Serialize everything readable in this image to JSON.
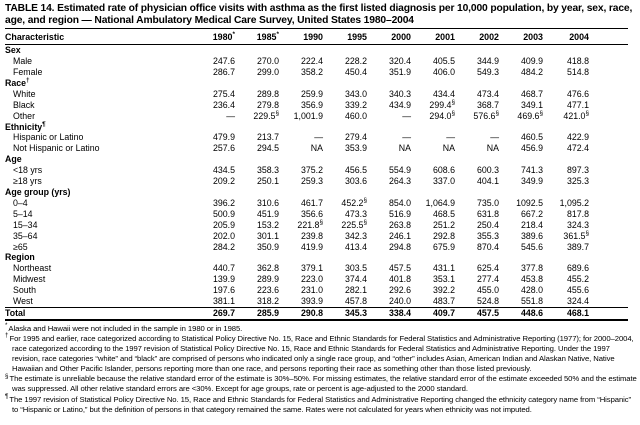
{
  "page": {
    "title": "TABLE 14. Estimated rate of physician office visits with asthma as the first listed diagnosis per 10,000 population, by year, sex, race, age, and region — National Ambulatory Medical Care Survey, United States 1980–2004"
  },
  "table": {
    "columns": [
      "Characteristic",
      "1980*",
      "1985*",
      "1990",
      "1995",
      "2000",
      "2001",
      "2002",
      "2003",
      "2004"
    ],
    "rows": [
      {
        "type": "section",
        "label": "Sex",
        "values": []
      },
      {
        "type": "data",
        "label": "Male",
        "values": [
          "247.6",
          "270.0",
          "222.4",
          "228.2",
          "320.4",
          "405.5",
          "344.9",
          "409.9",
          "418.8"
        ]
      },
      {
        "type": "data",
        "label": "Female",
        "values": [
          "286.7",
          "299.0",
          "358.2",
          "450.4",
          "351.9",
          "406.0",
          "549.3",
          "484.2",
          "514.8"
        ]
      },
      {
        "type": "section",
        "label": "Race†",
        "values": []
      },
      {
        "type": "data",
        "label": "White",
        "values": [
          "275.4",
          "289.8",
          "259.9",
          "343.0",
          "340.3",
          "434.4",
          "473.4",
          "468.7",
          "476.6"
        ]
      },
      {
        "type": "data",
        "label": "Black",
        "values": [
          "236.4",
          "279.8",
          "356.9",
          "339.2",
          "434.9",
          "299.4§",
          "368.7",
          "349.1",
          "477.1"
        ]
      },
      {
        "type": "data",
        "label": "Other",
        "values": [
          "—",
          "229.5§",
          "1,001.9",
          "460.0",
          "—",
          "294.0§",
          "576.6§",
          "469.6§",
          "421.0§"
        ]
      },
      {
        "type": "section",
        "label": "Ethnicity¶",
        "values": []
      },
      {
        "type": "data",
        "label": "Hispanic or Latino",
        "values": [
          "479.9",
          "213.7",
          "—",
          "279.4",
          "—",
          "—",
          "—",
          "460.5",
          "422.9"
        ]
      },
      {
        "type": "data",
        "label": "Not Hispanic or Latino",
        "values": [
          "257.6",
          "294.5",
          "NA",
          "353.9",
          "NA",
          "NA",
          "NA",
          "456.9",
          "472.4"
        ]
      },
      {
        "type": "section",
        "label": "Age",
        "values": []
      },
      {
        "type": "data",
        "label": "<18 yrs",
        "values": [
          "434.5",
          "358.3",
          "375.2",
          "456.5",
          "554.9",
          "608.6",
          "600.3",
          "741.3",
          "897.3"
        ]
      },
      {
        "type": "data",
        "label": "≥18 yrs",
        "values": [
          "209.2",
          "250.1",
          "259.3",
          "303.6",
          "264.3",
          "337.0",
          "404.1",
          "349.9",
          "325.3"
        ]
      },
      {
        "type": "section",
        "label": "Age group (yrs)",
        "values": []
      },
      {
        "type": "data",
        "label": "0–4",
        "values": [
          "396.2",
          "310.6",
          "461.7",
          "452.2§",
          "854.0",
          "1,064.9",
          "735.0",
          "1092.5",
          "1,095.2"
        ]
      },
      {
        "type": "data",
        "label": "5–14",
        "values": [
          "500.9",
          "451.9",
          "356.6",
          "473.3",
          "516.9",
          "468.5",
          "631.8",
          "667.2",
          "817.8"
        ]
      },
      {
        "type": "data",
        "label": "15–34",
        "values": [
          "205.9",
          "153.2",
          "221.8§",
          "225.5§",
          "263.8",
          "251.2",
          "250.4",
          "218.4",
          "324.3"
        ]
      },
      {
        "type": "data",
        "label": "35–64",
        "values": [
          "202.0",
          "301.1",
          "239.8",
          "342.3",
          "246.1",
          "292.8",
          "355.3",
          "389.6",
          "361.5§"
        ]
      },
      {
        "type": "data",
        "label": "≥65",
        "values": [
          "284.2",
          "350.9",
          "419.9",
          "413.4",
          "294.8",
          "675.9",
          "870.4",
          "545.6",
          "389.7"
        ]
      },
      {
        "type": "section",
        "label": "Region",
        "values": []
      },
      {
        "type": "data",
        "label": "Northeast",
        "values": [
          "440.7",
          "362.8",
          "379.1",
          "303.5",
          "457.5",
          "431.1",
          "625.4",
          "377.8",
          "689.6"
        ]
      },
      {
        "type": "data",
        "label": "Midwest",
        "values": [
          "139.9",
          "289.9",
          "223.0",
          "374.4",
          "401.8",
          "353.1",
          "277.4",
          "453.8",
          "455.2"
        ]
      },
      {
        "type": "data",
        "label": "South",
        "values": [
          "197.6",
          "223.6",
          "231.0",
          "282.1",
          "292.6",
          "392.2",
          "455.0",
          "428.0",
          "455.6"
        ]
      },
      {
        "type": "data",
        "label": "West",
        "values": [
          "381.1",
          "318.2",
          "393.9",
          "457.8",
          "240.0",
          "483.7",
          "524.8",
          "551.8",
          "324.4"
        ]
      },
      {
        "type": "total",
        "label": "Total",
        "values": [
          "269.7",
          "285.9",
          "290.8",
          "345.3",
          "338.4",
          "409.7",
          "457.5",
          "448.6",
          "468.1"
        ]
      }
    ]
  },
  "footnotes": [
    {
      "marker": "*",
      "text": "Alaska and Hawaii were not included in the sample in 1980 or in 1985."
    },
    {
      "marker": "†",
      "text": "For 1995 and earlier, race categorized according to Statistical Policy Directive No. 15, Race and Ethnic Standards for Federal Statistics and Administrative Reporting (1977); for 2000–2004, race categorized according to the 1997 revision of Statistical Policy Directive No. 15, Race and Ethnic Standards for Federal Statistics and Administrative Reporting. Under the 1997 revision, race categories “white” and “black” are comprised of persons who indicated only a single race group, and “other” includes Asian, American Indian and Alaskan Native, Native Hawaiian and Other Pacific Islander, persons reporting more than one race, and persons reporting their race as something other than those listed previously."
    },
    {
      "marker": "§",
      "text": "The estimate is unreliable because the relative standard error of the estimate is 30%–50%. For missing estimates, the relative standard error of the estimate exceeded 50% and the estimate was suppressed. All other relative standard errors are <30%. Except for age groups, rate or percent is age-adjusted to the 2000 standard."
    },
    {
      "marker": "¶",
      "text": "The 1997 revision of Statistical Policy Directive No. 15, Race and Ethnic Standards for Federal Statistics and Administrative Reporting changed the ethnicity category name from “Hispanic” to “Hispanic or Latino,” but the definition of persons in that category remained the same. Rates were not calculated for years when ethnicity was not imputed."
    }
  ]
}
